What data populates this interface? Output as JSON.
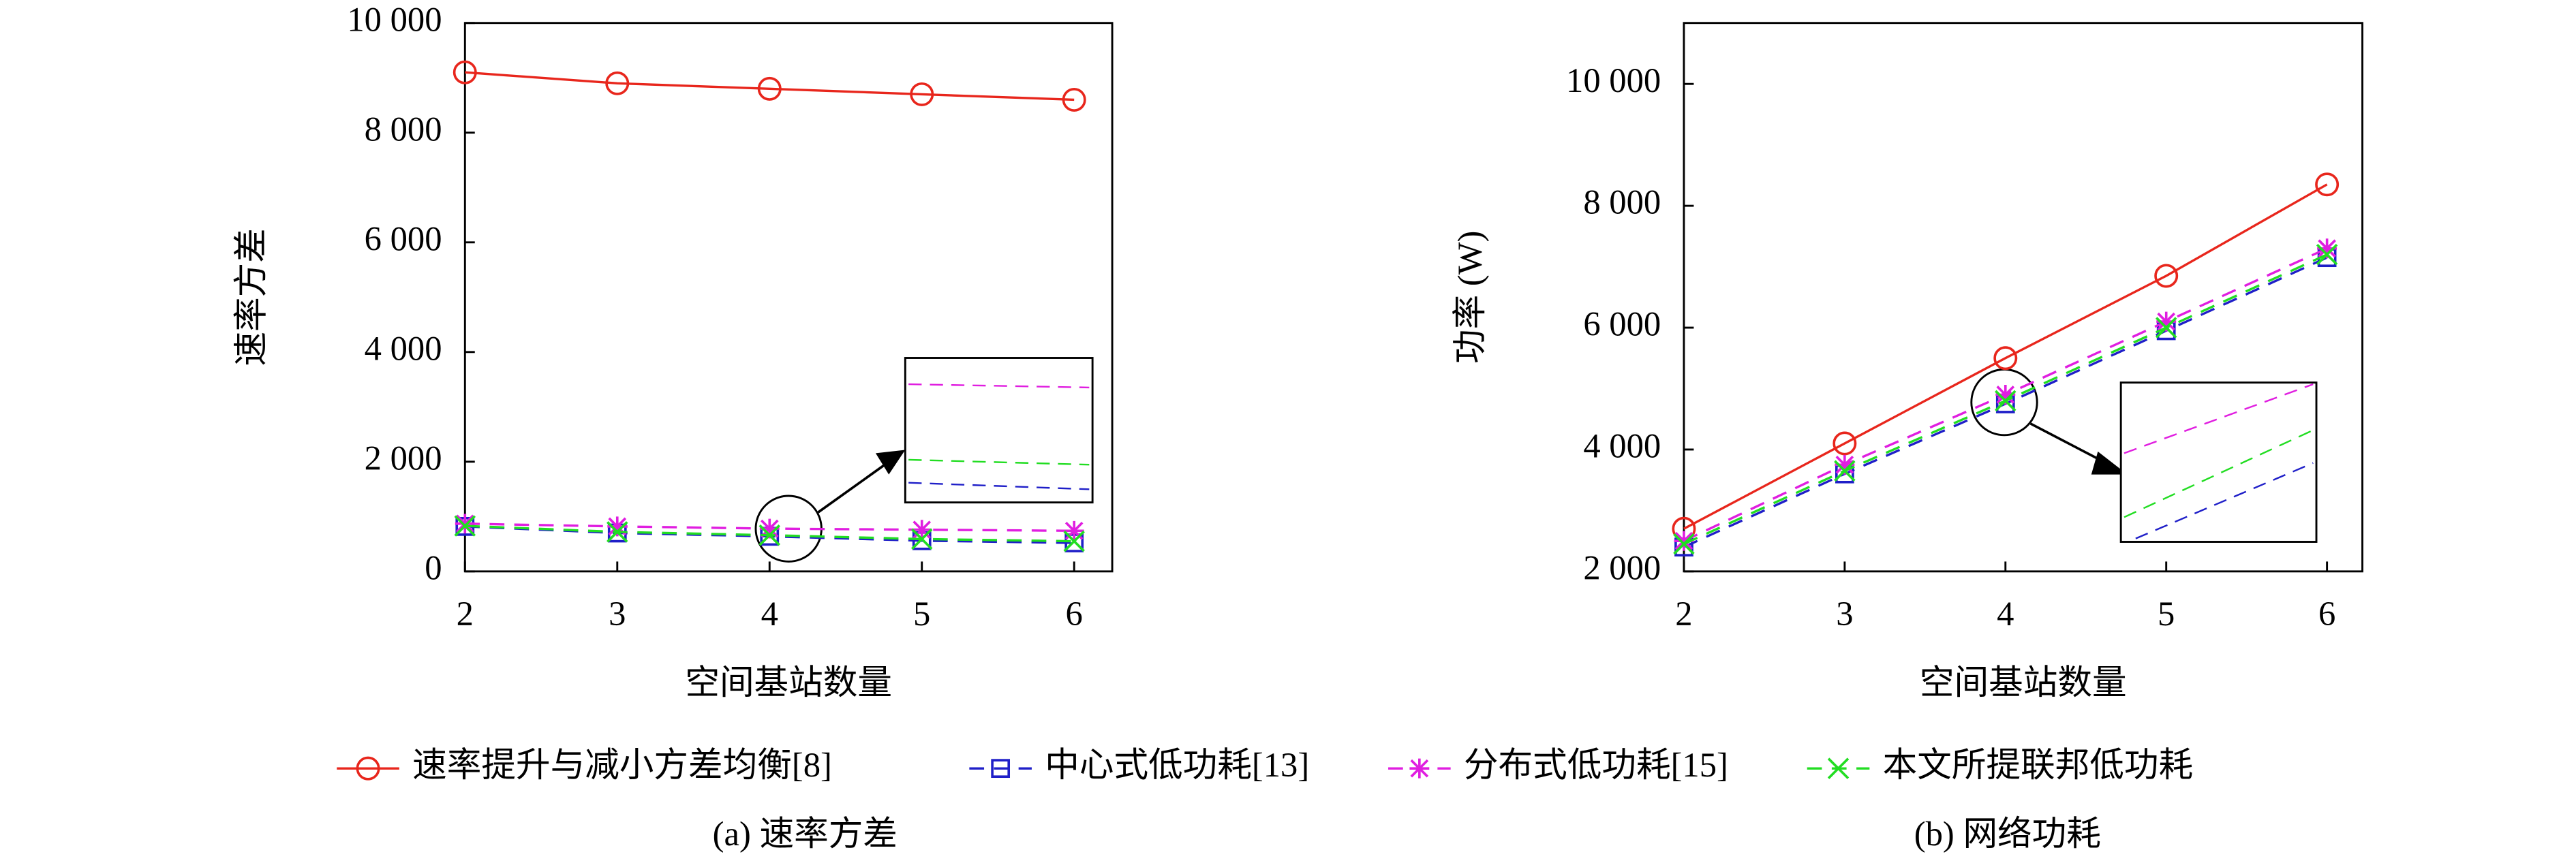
{
  "chart_data": [
    {
      "type": "line",
      "xlabel": "空间基站数量",
      "ylabel": "速率方差",
      "caption": "(a) 速率方差",
      "x": [
        2,
        3,
        4,
        5,
        6
      ],
      "xlim": [
        2,
        6.25
      ],
      "xticks": [
        2,
        3,
        4,
        5,
        6
      ],
      "ylim": [
        0,
        10000
      ],
      "yticks": [
        0,
        {
          "value": 2000,
          "label": "2 000"
        },
        {
          "value": 4000,
          "label": "4 000"
        },
        {
          "value": 6000,
          "label": "6 000"
        },
        {
          "value": 8000,
          "label": "8 000"
        },
        {
          "value": 10000,
          "label": "10 000"
        }
      ],
      "series": [
        {
          "name": "速率提升与减小方差均衡[8]",
          "color": "#e8261c",
          "marker": "circle",
          "dash": false,
          "values": [
            9100,
            8900,
            8800,
            8700,
            8600
          ]
        },
        {
          "name": "中心式低功耗[13]",
          "color": "#1f1fc8",
          "marker": "square",
          "dash": true,
          "values": [
            820,
            700,
            640,
            560,
            520
          ]
        },
        {
          "name": "分布式低功耗[15]",
          "color": "#e01ee0",
          "marker": "star",
          "dash": true,
          "values": [
            870,
            820,
            780,
            760,
            740
          ]
        },
        {
          "name": "本文所提联邦低功耗",
          "color": "#22dd22",
          "marker": "x",
          "dash": true,
          "values": [
            830,
            720,
            660,
            590,
            550
          ]
        }
      ]
    },
    {
      "type": "line",
      "xlabel": "空间基站数量",
      "ylabel": "功率 (W)",
      "caption": "(b) 网络功耗",
      "x": [
        2,
        3,
        4,
        5,
        6
      ],
      "xlim": [
        2,
        6.22
      ],
      "xticks": [
        2,
        3,
        4,
        5,
        6
      ],
      "ylim": [
        2000,
        11000
      ],
      "yticks": [
        {
          "value": 2000,
          "label": "2 000"
        },
        {
          "value": 4000,
          "label": "4 000"
        },
        {
          "value": 6000,
          "label": "6 000"
        },
        {
          "value": 8000,
          "label": "8 000"
        },
        {
          "value": 10000,
          "label": "10 000"
        }
      ],
      "series": [
        {
          "color": "#e8261c",
          "marker": "circle",
          "dash": false,
          "values": [
            2700,
            4100,
            5500,
            6850,
            8350
          ]
        },
        {
          "color": "#1f1fc8",
          "marker": "square",
          "dash": true,
          "values": [
            2400,
            3600,
            4750,
            5950,
            7150
          ]
        },
        {
          "color": "#e01ee0",
          "marker": "star",
          "dash": true,
          "values": [
            2500,
            3750,
            4900,
            6100,
            7300
          ]
        },
        {
          "color": "#22dd22",
          "marker": "x",
          "dash": true,
          "values": [
            2450,
            3650,
            4800,
            6000,
            7200
          ]
        }
      ]
    }
  ]
}
